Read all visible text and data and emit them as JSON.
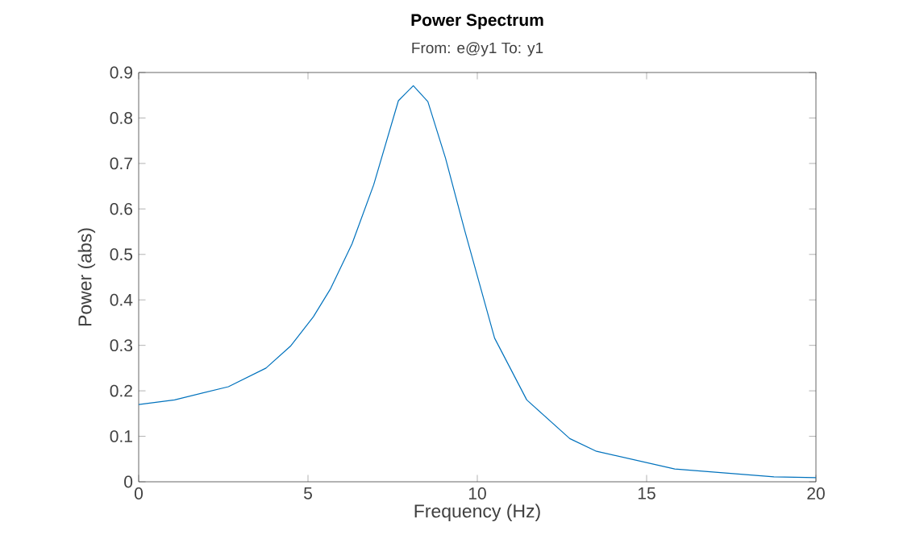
{
  "chart_data": {
    "type": "line",
    "title": "Power Spectrum",
    "subtitle": "From: e@y1  To: y1",
    "xlabel": "Frequency  (Hz)",
    "ylabel": "Power (abs)",
    "xlim": [
      0,
      20
    ],
    "ylim": [
      0,
      0.9
    ],
    "xticks": [
      0,
      5,
      10,
      15,
      20
    ],
    "yticks": [
      0,
      0.1,
      0.2,
      0.3,
      0.4,
      0.5,
      0.6,
      0.7,
      0.8,
      0.9
    ],
    "grid": false,
    "marker": "none",
    "line_style": "solid",
    "series": [
      {
        "color": "#0072bd",
        "x": [
          0,
          1.06,
          2.65,
          3.76,
          4.48,
          5.16,
          5.67,
          6.3,
          6.94,
          7.67,
          8.11,
          8.54,
          9.06,
          9.63,
          10.51,
          11.46,
          12.73,
          13.52,
          15.83,
          18.76,
          20
        ],
        "values": [
          0.17,
          0.18,
          0.209,
          0.25,
          0.298,
          0.363,
          0.425,
          0.523,
          0.653,
          0.838,
          0.871,
          0.836,
          0.712,
          0.552,
          0.316,
          0.18,
          0.095,
          0.067,
          0.028,
          0.011,
          0.009
        ]
      }
    ]
  }
}
